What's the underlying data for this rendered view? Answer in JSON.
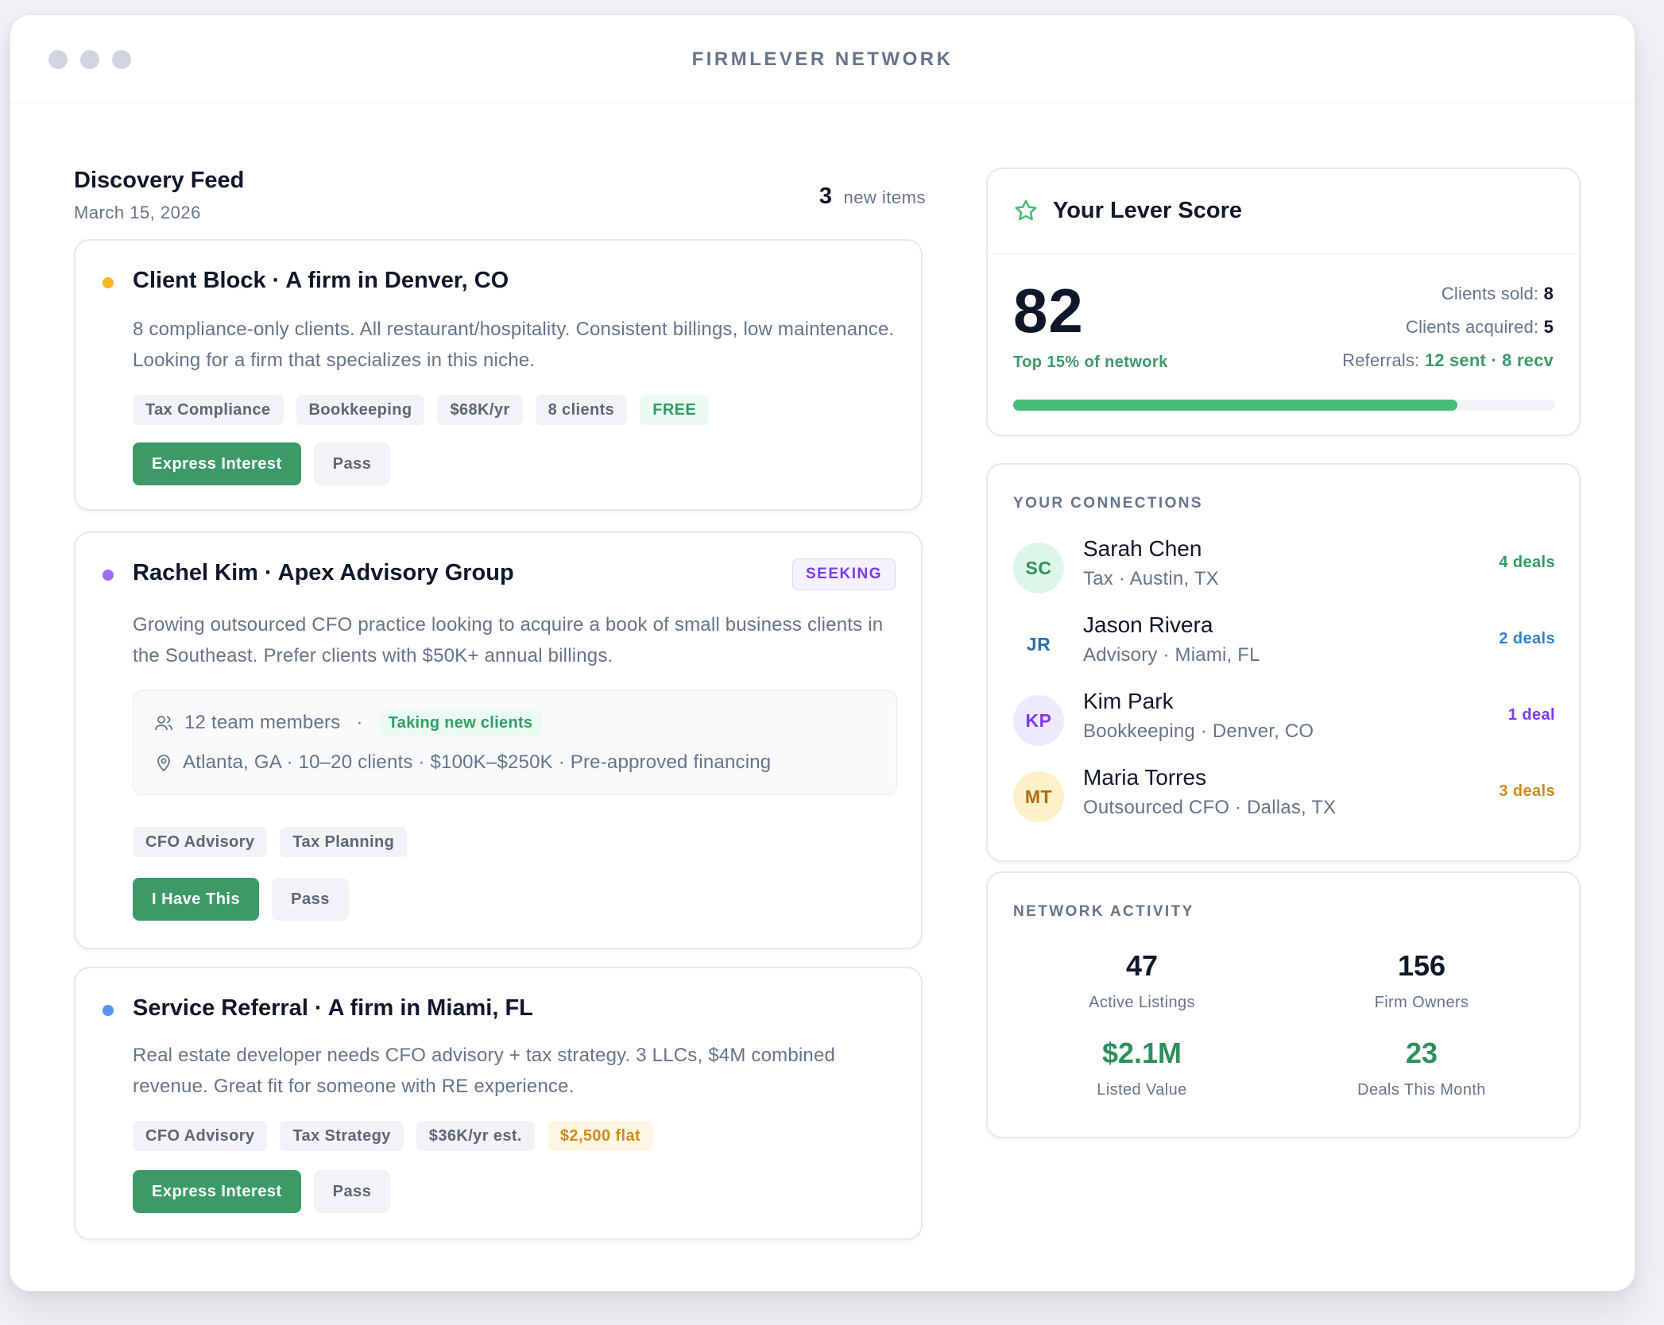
{
  "window": {
    "title": "FIRMLEVER NETWORK"
  },
  "feed": {
    "title": "Discovery Feed",
    "date": "March 15, 2026",
    "new_count": "3",
    "new_label": "new items",
    "cards": [
      {
        "bullet_color": "#f6b61e",
        "title": "Client Block · A firm in Denver, CO",
        "description": "8 compliance-only clients. All restaurant/hospitality. Consistent billings, low maintenance. Looking for a firm that specializes in this niche.",
        "tags": [
          "Tax Compliance",
          "Bookkeeping",
          "$68K/yr",
          "8 clients",
          "FREE"
        ],
        "primary_button": "Express Interest",
        "secondary_button": "Pass"
      },
      {
        "bullet_color": "#9b6cf6",
        "title": "Rachel Kim · Apex Advisory Group",
        "badge": "SEEKING",
        "description": "Growing outsourced CFO practice looking to acquire a book of small business clients in the Southeast. Prefer clients with $50K+ annual billings.",
        "info": {
          "team": "12 team members",
          "separator": "·",
          "status": "Taking new clients",
          "location": "Atlanta, GA · 10–20 clients · $100K–$250K · Pre-approved financing"
        },
        "tags": [
          "CFO Advisory",
          "Tax Planning"
        ],
        "primary_button": "I Have This",
        "secondary_button": "Pass"
      },
      {
        "bullet_color": "#5b93f0",
        "title": "Service Referral · A firm in Miami, FL",
        "description": "Real estate developer needs CFO advisory + tax strategy. 3 LLCs, $4M combined revenue. Great fit for someone with RE experience.",
        "tags": [
          "CFO Advisory",
          "Tax Strategy",
          "$36K/yr est.",
          "$2,500 flat"
        ],
        "primary_button": "Express Interest",
        "secondary_button": "Pass"
      }
    ]
  },
  "score": {
    "title": "Your Lever Score",
    "value": "82",
    "rank": "Top 15% of network",
    "progress_pct": 82,
    "clients_sold_label": "Clients sold:",
    "clients_sold": "8",
    "clients_acquired_label": "Clients acquired:",
    "clients_acquired": "5",
    "referrals_label": "Referrals:",
    "referrals_value": "12 sent · 8 recv",
    "accent": "#48bb78"
  },
  "connections": {
    "label": "YOUR CONNECTIONS",
    "items": [
      {
        "initials": "SC",
        "name": "Sarah Chen",
        "meta": "Tax · Austin, TX",
        "deals": "4 deals",
        "bg": "#dcf7e8",
        "fg": "#2f8f5e",
        "deal_color": "#2f9d63"
      },
      {
        "initials": "JR",
        "name": "Jason Rivera",
        "meta": "Advisory · Miami, FL",
        "deals": "2 deals",
        "bg": "#ffffff",
        "fg": "#2b6cb0",
        "deal_color": "#2f7fcf"
      },
      {
        "initials": "KP",
        "name": "Kim Park",
        "meta": "Bookkeeping · Denver, CO",
        "deals": "1 deal",
        "bg": "#efe9fd",
        "fg": "#7c3aed",
        "deal_color": "#7c3aed"
      },
      {
        "initials": "MT",
        "name": "Maria Torres",
        "meta": "Outsourced CFO · Dallas, TX",
        "deals": "3 deals",
        "bg": "#fdf1c7",
        "fg": "#b06a10",
        "deal_color": "#d08a18"
      }
    ]
  },
  "activity": {
    "label": "NETWORK ACTIVITY",
    "stats": [
      {
        "value": "47",
        "label": "Active Listings"
      },
      {
        "value": "156",
        "label": "Firm Owners"
      },
      {
        "value": "$2.1M",
        "label": "Listed Value"
      },
      {
        "value": "23",
        "label": "Deals This Month"
      }
    ]
  }
}
